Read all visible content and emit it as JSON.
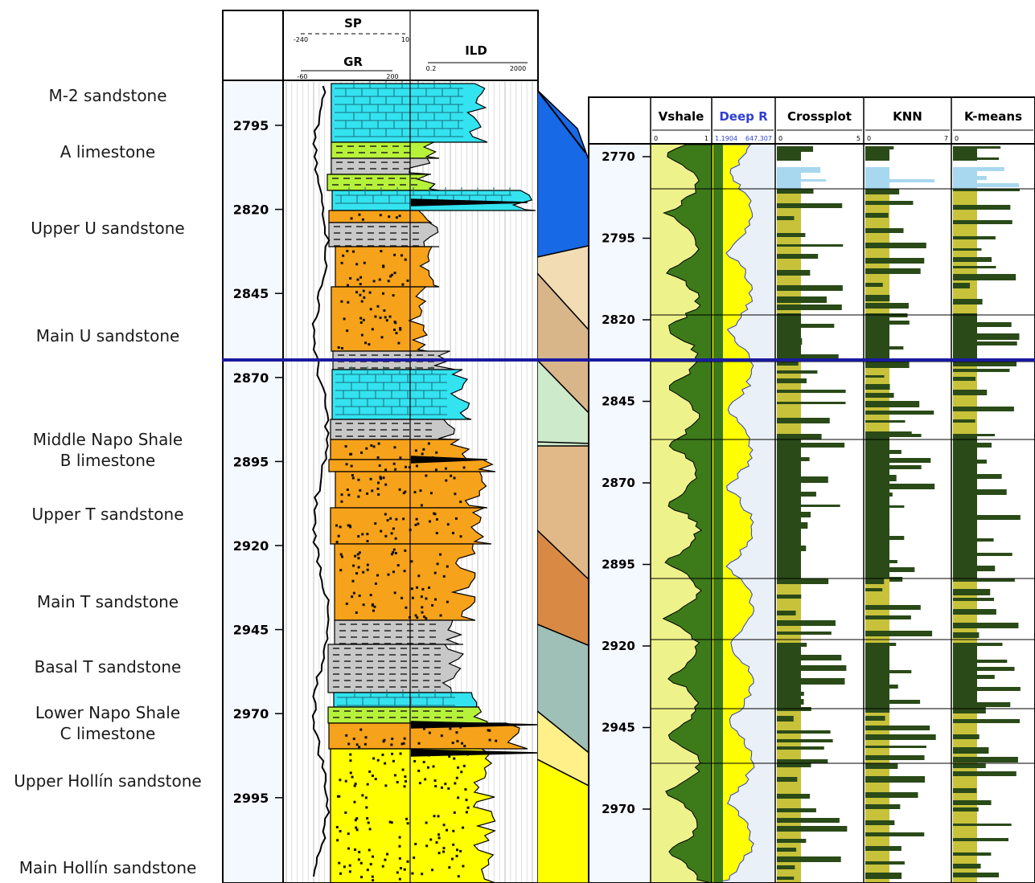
{
  "formations": [
    {
      "lines": [
        "M-2 sandstone"
      ]
    },
    {
      "lines": [
        "A limestone"
      ]
    },
    {
      "lines": [
        "Upper U sandstone"
      ]
    },
    {
      "lines": [
        "Main U sandstone"
      ]
    },
    {
      "lines": [
        "Middle Napo Shale",
        "B limestone"
      ]
    },
    {
      "lines": [
        "Upper T sandstone"
      ]
    },
    {
      "lines": [
        "Main T sandstone"
      ]
    },
    {
      "lines": [
        "Basal T sandstone"
      ]
    },
    {
      "lines": [
        "Lower Napo Shale",
        "C limestone"
      ]
    },
    {
      "lines": [
        "Upper Hollín sandstone"
      ]
    },
    {
      "lines": [
        "Main Hollín sandstone"
      ]
    }
  ],
  "left_log": {
    "header": {
      "sp_title": "SP",
      "sp_min": "-240",
      "sp_max": "10",
      "gr_title": "GR",
      "gr_min": "-60",
      "gr_max": "200",
      "ild_title": "ILD",
      "ild_min": "0.2",
      "ild_max": "2000"
    },
    "depths": [
      "2795",
      "2820",
      "2845",
      "2870",
      "2895",
      "2920",
      "2945",
      "2970",
      "2995"
    ],
    "lithology_colors": {
      "limestone": "#33e3f0",
      "shale": "#c8c8c8",
      "sandstone_u": "#f7a21b",
      "sandstone_h": "#ffff00",
      "marl": "#b7f23a"
    }
  },
  "right_log": {
    "tracks": [
      {
        "title": "Vshale",
        "min": "0",
        "max": "1"
      },
      {
        "title": "Deep R",
        "min": "1.1904",
        "max": "647.307"
      },
      {
        "title": "Crossplot",
        "min": "0",
        "max": "5"
      },
      {
        "title": "KNN",
        "min": "0",
        "max": "7"
      },
      {
        "title": "K-means",
        "min": "0",
        "max": ""
      }
    ],
    "depths": [
      "2770",
      "2795",
      "2820",
      "2845",
      "2870",
      "2895",
      "2920",
      "2945",
      "2970"
    ],
    "colors": {
      "vshale_clean": "#eef28a",
      "vshale_shaly": "#3d7a1a",
      "deep_r": "#ffff00",
      "deep_r_line": "#2f3fd1",
      "limestone": "#a8d8ef",
      "sand": "#c7c23a",
      "shale": "#2a4a18"
    }
  },
  "correlation_line_color": "#1a1aa0",
  "zone_colors": [
    "#1769e6",
    "#f2dcb3",
    "#d8b68a",
    "#cdeacb",
    "#e1b888",
    "#d88a45",
    "#9fc0b6",
    "#fff08a",
    "#ffff00"
  ]
}
